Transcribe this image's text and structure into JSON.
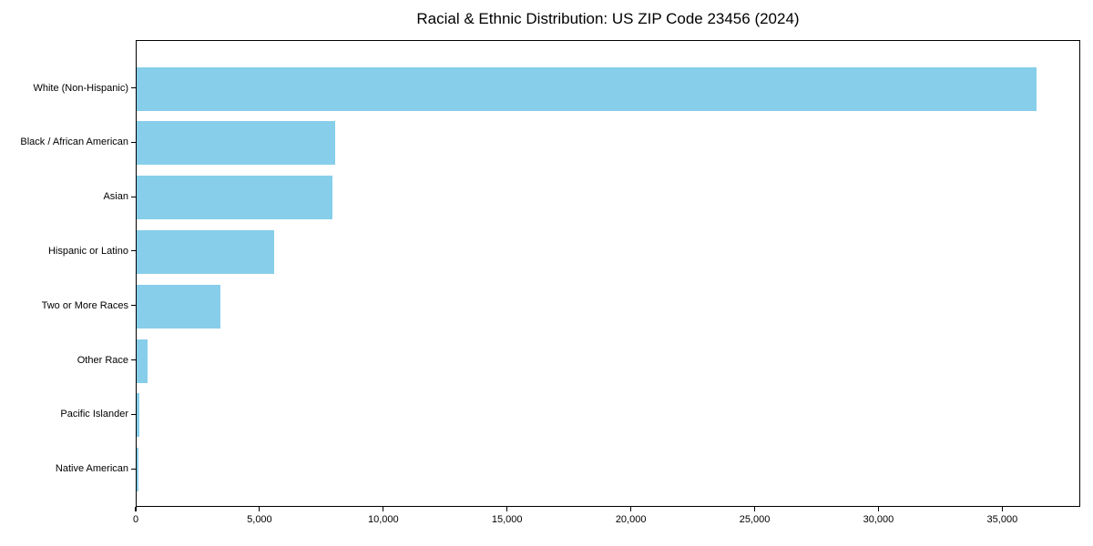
{
  "chart_data": {
    "type": "bar",
    "orientation": "horizontal",
    "title": "Racial & Ethnic Distribution: US ZIP Code 23456 (2024)",
    "categories": [
      "White (Non-Hispanic)",
      "Black / African American",
      "Asian",
      "Hispanic or Latino",
      "Two or More Races",
      "Other Race",
      "Pacific Islander",
      "Native American"
    ],
    "values": [
      36350,
      8000,
      7900,
      5550,
      3400,
      450,
      120,
      80
    ],
    "xlabel": "",
    "ylabel": "",
    "xlim": [
      0,
      38150
    ],
    "xticks": [
      0,
      5000,
      10000,
      15000,
      20000,
      25000,
      30000,
      35000
    ],
    "xtick_labels": [
      "0",
      "5,000",
      "10,000",
      "15,000",
      "20,000",
      "25,000",
      "30,000",
      "35,000"
    ],
    "bar_color": "#87CEEB",
    "background_color": "#ffffff",
    "frame_color": "#000000",
    "grid": false,
    "legend": null
  }
}
